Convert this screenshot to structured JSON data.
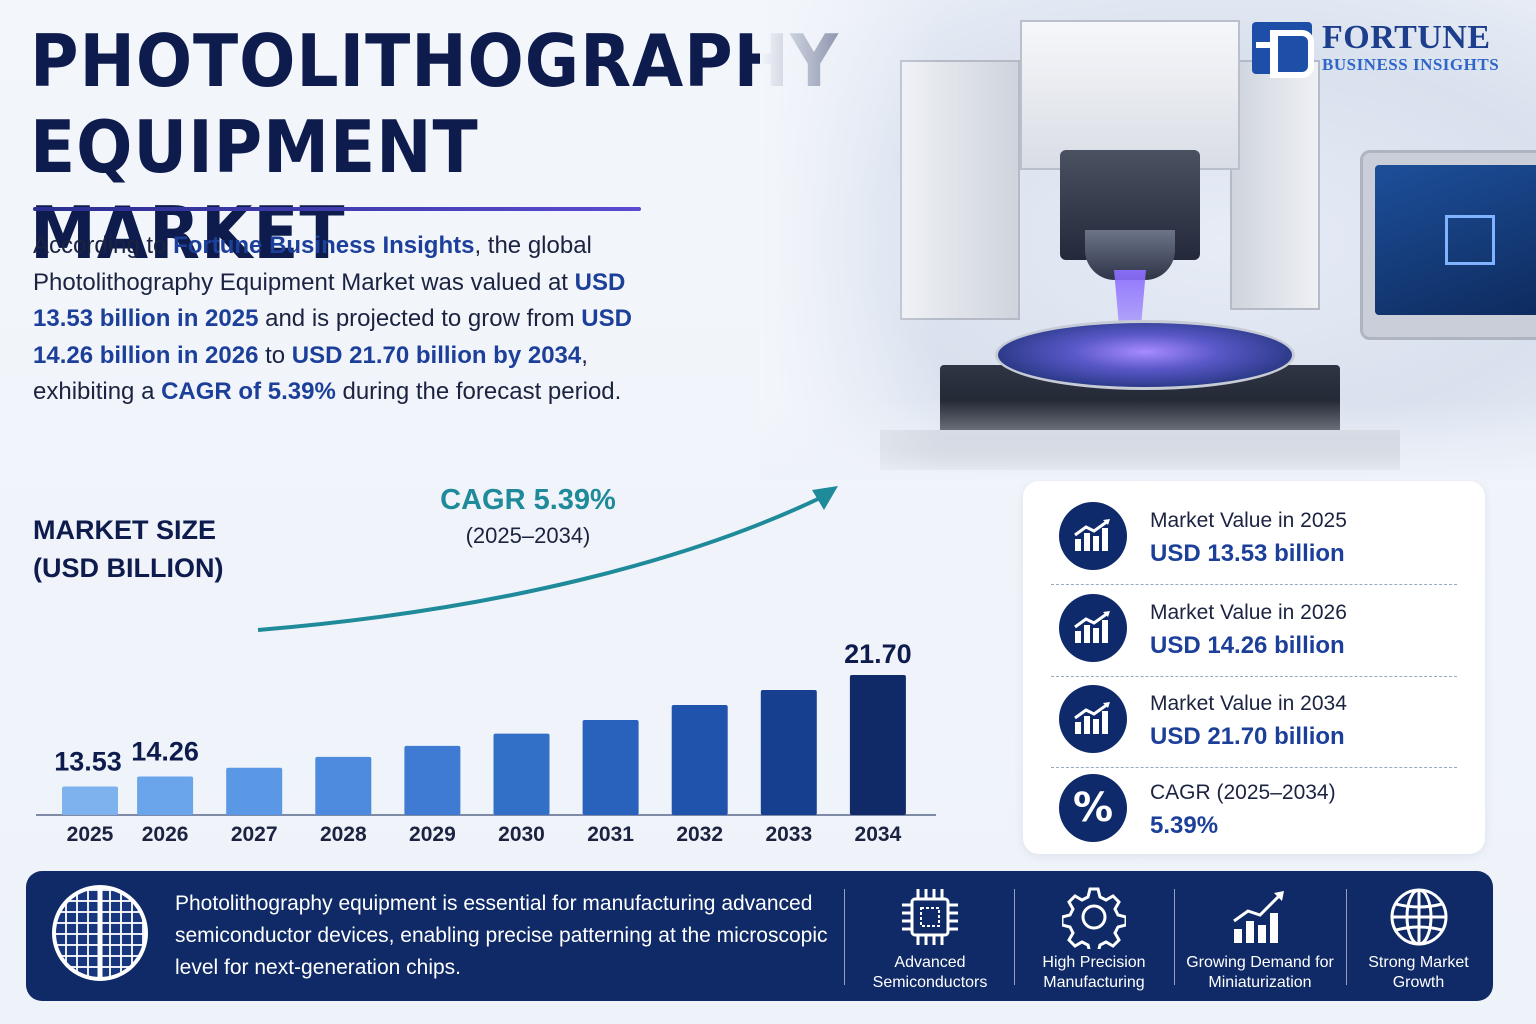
{
  "header": {
    "title_line1": "PHOTOLITHOGRAPHY",
    "title_line2": "EQUIPMENT MARKET"
  },
  "logo": {
    "name": "FORTUNE",
    "sub": "BUSINESS INSIGHTS"
  },
  "intro": {
    "p1": "According to ",
    "p2": "Fortune Business Insights",
    "p3": ", the global Photolithography Equipment Market was valued at ",
    "p4": "USD 13.53 billion in 2025",
    "p5": " and is projected to grow from ",
    "p6": "USD 14.26 billion in 2026",
    "p7": " to ",
    "p8": "USD 21.70 billion by 2034",
    "p9": ", exhibiting a ",
    "p10": "CAGR of 5.39%",
    "p11": " during the forecast period."
  },
  "chart_labels": {
    "title_line1": "MARKET SIZE",
    "title_line2": "(USD BILLION)",
    "cagr": "CAGR 5.39%",
    "cagr_period": "(2025–2034)"
  },
  "chart_data": {
    "type": "bar",
    "title": "MARKET SIZE (USD BILLION)",
    "categories": [
      "2025",
      "2026",
      "2027",
      "2028",
      "2029",
      "2030",
      "2031",
      "2032",
      "2033",
      "2034"
    ],
    "values": [
      13.53,
      14.26,
      14.9,
      15.7,
      16.5,
      17.4,
      18.4,
      19.5,
      20.6,
      21.7
    ],
    "value_labels": [
      "13.53",
      "14.26",
      "",
      "",
      "",
      "",
      "",
      "",
      "",
      "21.70"
    ],
    "colors": [
      "#7db2ee",
      "#6aa4ea",
      "#5a97e4",
      "#4e8bde",
      "#3f7bd3",
      "#3270c8",
      "#2962bc",
      "#2054ac",
      "#173f90",
      "#0f2a66"
    ],
    "annotation": "CAGR 5.39% (2025–2034)",
    "grid": false
  },
  "stats": [
    {
      "label": "Market Value in 2025",
      "value": "USD 13.53 billion",
      "icon": "growth-chart-icon"
    },
    {
      "label": "Market Value in 2026",
      "value": "USD 14.26 billion",
      "icon": "growth-chart-icon"
    },
    {
      "label": "Market Value in 2034",
      "value": "USD 21.70 billion",
      "icon": "growth-chart-icon"
    },
    {
      "label": "CAGR (2025–2034)",
      "value": "5.39%",
      "icon": "percent-icon",
      "symbol": "%"
    }
  ],
  "banner": {
    "description": "Photolithography equipment is essential for manufacturing advanced semiconductor devices, enabling precise patterning at the microscopic level for next-generation chips.",
    "features": [
      {
        "line1": "Advanced",
        "line2": "Semiconductors",
        "icon": "chip-icon"
      },
      {
        "line1": "High Precision",
        "line2": "Manufacturing",
        "icon": "gear-icon"
      },
      {
        "line1": "Growing Demand for",
        "line2": "Miniaturization",
        "icon": "bar-growth-icon"
      },
      {
        "line1": "Strong Market",
        "line2": "Growth",
        "icon": "globe-icon"
      }
    ]
  }
}
